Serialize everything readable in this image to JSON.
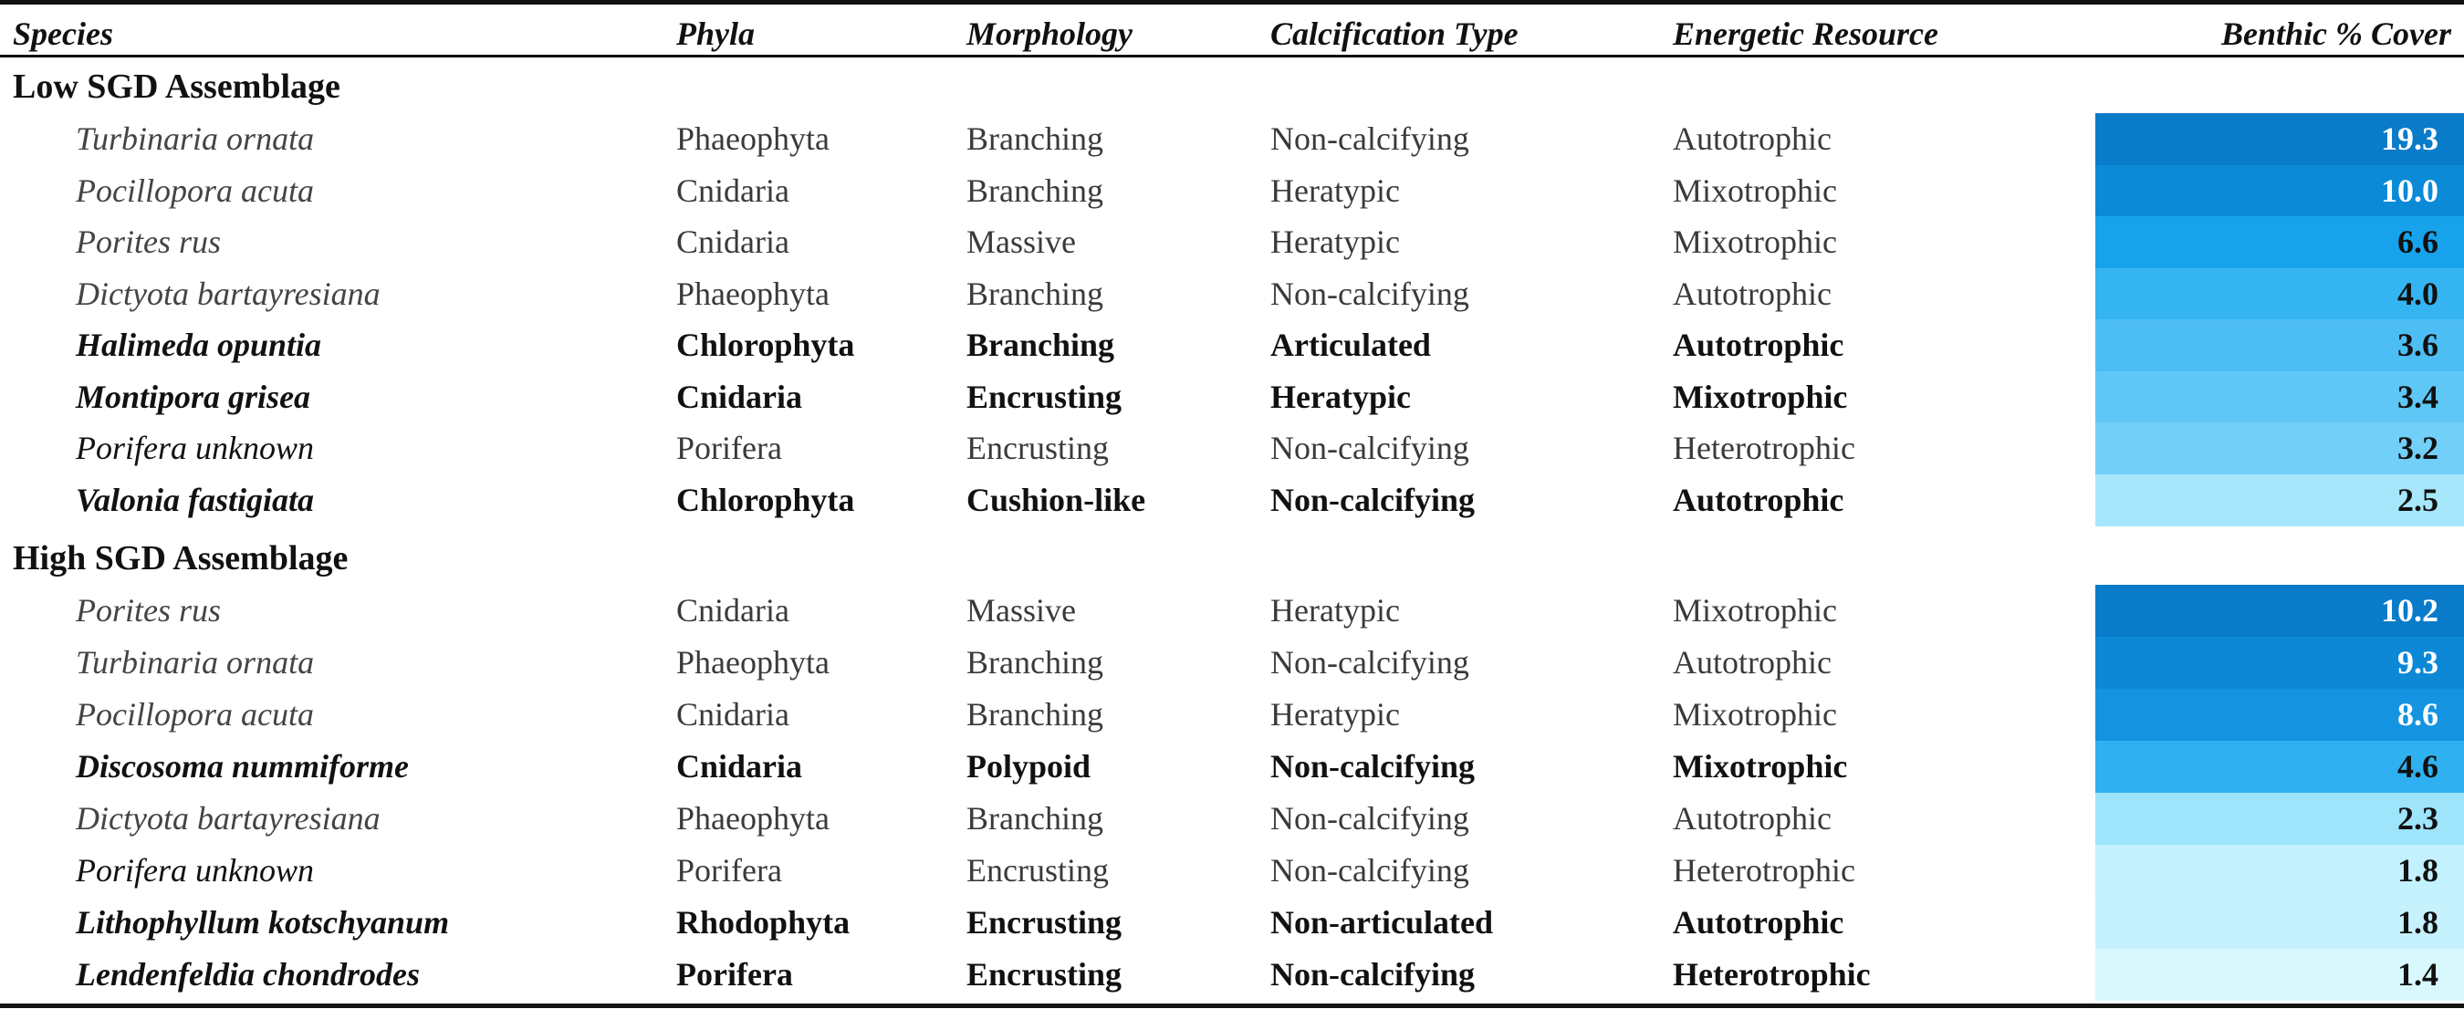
{
  "header": {
    "species": "Species",
    "phyla": "Phyla",
    "morphology": "Morphology",
    "calcification": "Calcification Type",
    "energetic": "Energetic Resource",
    "cover": "Benthic % Cover"
  },
  "groups": {
    "low": "Low SGD Assemblage",
    "high": "High SGD Assemblage"
  },
  "low": [
    {
      "species": "Turbinaria ornata",
      "phyla": "Phaeophyta",
      "morphology": "Branching",
      "calcification": "Non-calcifying",
      "energetic": "Autotrophic",
      "cover": "19.3",
      "color": "#0a7bc9",
      "text_color": "#ffffff"
    },
    {
      "species": "Pocillopora acuta",
      "phyla": "Cnidaria",
      "morphology": "Branching",
      "calcification": "Heratypic",
      "energetic": "Mixotrophic",
      "cover": "10.0",
      "color": "#0b8ad8",
      "text_color": "#ffffff"
    },
    {
      "species": "Porites rus",
      "phyla": "Cnidaria",
      "morphology": "Massive",
      "calcification": "Heratypic",
      "energetic": "Mixotrophic",
      "cover": "6.6",
      "color": "#17a3ec",
      "text_color": "#111111"
    },
    {
      "species": "Dictyota bartayresiana",
      "phyla": "Phaeophyta",
      "morphology": "Branching",
      "calcification": "Non-calcifying",
      "energetic": "Autotrophic",
      "cover": "4.0",
      "color": "#35b4f2",
      "text_color": "#111111"
    },
    {
      "species": "Halimeda opuntia",
      "phyla": "Chlorophyta",
      "morphology": "Branching",
      "calcification": "Articulated",
      "energetic": "Autotrophic",
      "cover": "3.6",
      "color": "#4dbef4",
      "text_color": "#111111",
      "bold": true
    },
    {
      "species": "Montipora grisea",
      "phyla": "Cnidaria",
      "morphology": "Encrusting",
      "calcification": "Heratypic",
      "energetic": "Mixotrophic",
      "cover": "3.4",
      "color": "#5ec7f6",
      "text_color": "#111111",
      "bold": true
    },
    {
      "species": "Porifera unknown",
      "phyla": "Porifera",
      "morphology": "Encrusting",
      "calcification": "Non-calcifying",
      "energetic": "Heterotrophic",
      "cover": "3.2",
      "color": "#72cff7",
      "text_color": "#111111",
      "plain": true
    },
    {
      "species": "Valonia fastigiata",
      "phyla": "Chlorophyta",
      "morphology": "Cushion-like",
      "calcification": "Non-calcifying",
      "energetic": "Autotrophic",
      "cover": "2.5",
      "color": "#a6e7fb",
      "text_color": "#111111",
      "bold": true
    }
  ],
  "high": [
    {
      "species": "Porites rus",
      "phyla": "Cnidaria",
      "morphology": "Massive",
      "calcification": "Heratypic",
      "energetic": "Mixotrophic",
      "cover": "10.2",
      "color": "#0a7bc9",
      "text_color": "#ffffff"
    },
    {
      "species": "Turbinaria ornata",
      "phyla": "Phaeophyta",
      "morphology": "Branching",
      "calcification": "Non-calcifying",
      "energetic": "Autotrophic",
      "cover": "9.3",
      "color": "#0c88d6",
      "text_color": "#ffffff"
    },
    {
      "species": "Pocillopora acuta",
      "phyla": "Cnidaria",
      "morphology": "Branching",
      "calcification": "Heratypic",
      "energetic": "Mixotrophic",
      "cover": "8.6",
      "color": "#1393e0",
      "text_color": "#ffffff"
    },
    {
      "species": "Discosoma nummiforme",
      "phyla": "Cnidaria",
      "morphology": "Polypoid",
      "calcification": "Non-calcifying",
      "energetic": "Mixotrophic",
      "cover": "4.6",
      "color": "#2fb1f1",
      "text_color": "#111111",
      "bold": true
    },
    {
      "species": "Dictyota bartayresiana",
      "phyla": "Phaeophyta",
      "morphology": "Branching",
      "calcification": "Non-calcifying",
      "energetic": "Autotrophic",
      "cover": "2.3",
      "color": "#9ee4fb",
      "text_color": "#111111"
    },
    {
      "species": "Porifera unknown",
      "phyla": "Porifera",
      "morphology": "Encrusting",
      "calcification": "Non-calcifying",
      "energetic": "Heterotrophic",
      "cover": "1.8",
      "color": "#c3f1fd",
      "text_color": "#111111",
      "plain": true
    },
    {
      "species": "Lithophyllum kotschyanum",
      "phyla": "Rhodophyta",
      "morphology": "Encrusting",
      "calcification": "Non-articulated",
      "energetic": "Autotrophic",
      "cover": "1.8",
      "color": "#c6f2fd",
      "text_color": "#111111",
      "bold": true
    },
    {
      "species": "Lendenfeldia chondrodes",
      "phyla": "Porifera",
      "morphology": "Encrusting",
      "calcification": "Non-calcifying",
      "energetic": "Heterotrophic",
      "cover": "1.4",
      "color": "#d9f8fe",
      "text_color": "#111111",
      "bold": true
    }
  ]
}
